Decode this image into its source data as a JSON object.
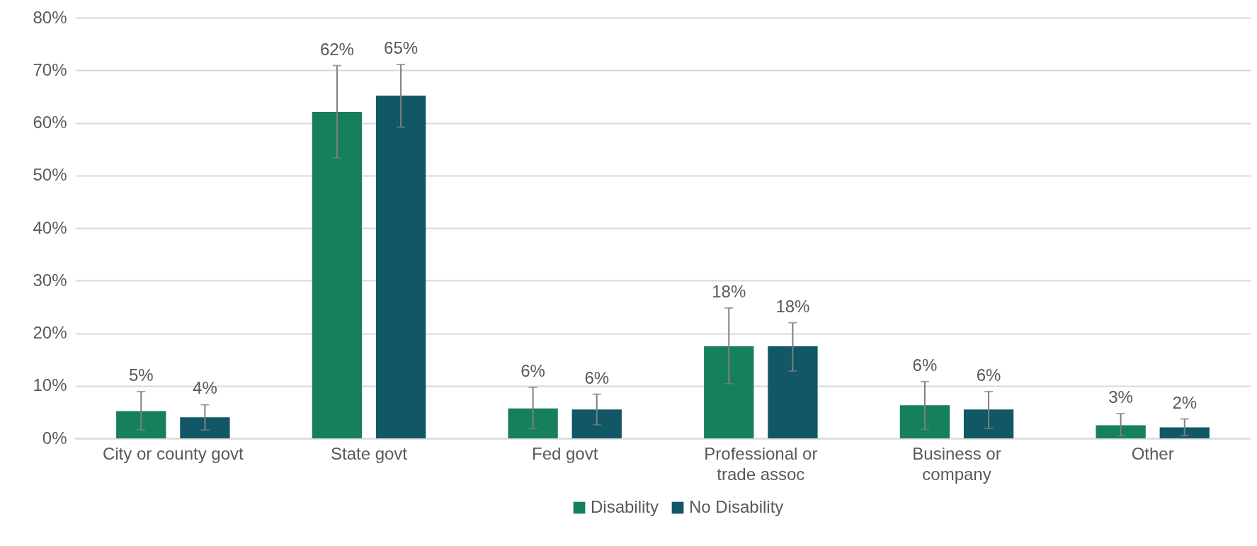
{
  "chart_data": {
    "type": "bar",
    "categories": [
      "City or county govt",
      "State govt",
      "Fed govt",
      "Professional or\ntrade assoc",
      "Business or\ncompany",
      "Other"
    ],
    "series": [
      {
        "name": "Disability",
        "color": "#15805a",
        "values": [
          5.2,
          62.1,
          5.7,
          17.5,
          6.3,
          2.5
        ],
        "errors": [
          [
            1.6,
            8.9
          ],
          [
            53.3,
            70.9
          ],
          [
            1.9,
            9.7
          ],
          [
            10.4,
            24.8
          ],
          [
            1.7,
            10.8
          ],
          [
            0.5,
            4.7
          ]
        ],
        "value_labels": [
          "5%",
          "62%",
          "6%",
          "18%",
          "6%",
          "3%"
        ]
      },
      {
        "name": "No Disability",
        "color": "#115766",
        "values": [
          4.0,
          65.2,
          5.5,
          17.5,
          5.5,
          2.1
        ],
        "errors": [
          [
            1.6,
            6.4
          ],
          [
            59.2,
            71.1
          ],
          [
            2.6,
            8.4
          ],
          [
            12.8,
            22.0
          ],
          [
            1.9,
            8.9
          ],
          [
            0.5,
            3.7
          ]
        ],
        "value_labels": [
          "4%",
          "65%",
          "6%",
          "18%",
          "6%",
          "2%"
        ]
      }
    ],
    "ylim": [
      0,
      80
    ],
    "yticks": [
      {
        "value": 0,
        "label": "0%"
      },
      {
        "value": 10,
        "label": "10%"
      },
      {
        "value": 20,
        "label": "20%"
      },
      {
        "value": 30,
        "label": "30%"
      },
      {
        "value": 40,
        "label": "40%"
      },
      {
        "value": 50,
        "label": "50%"
      },
      {
        "value": 60,
        "label": "60%"
      },
      {
        "value": 70,
        "label": "70%"
      },
      {
        "value": 80,
        "label": "80%"
      }
    ],
    "grid": "y",
    "legend": "bottom"
  }
}
